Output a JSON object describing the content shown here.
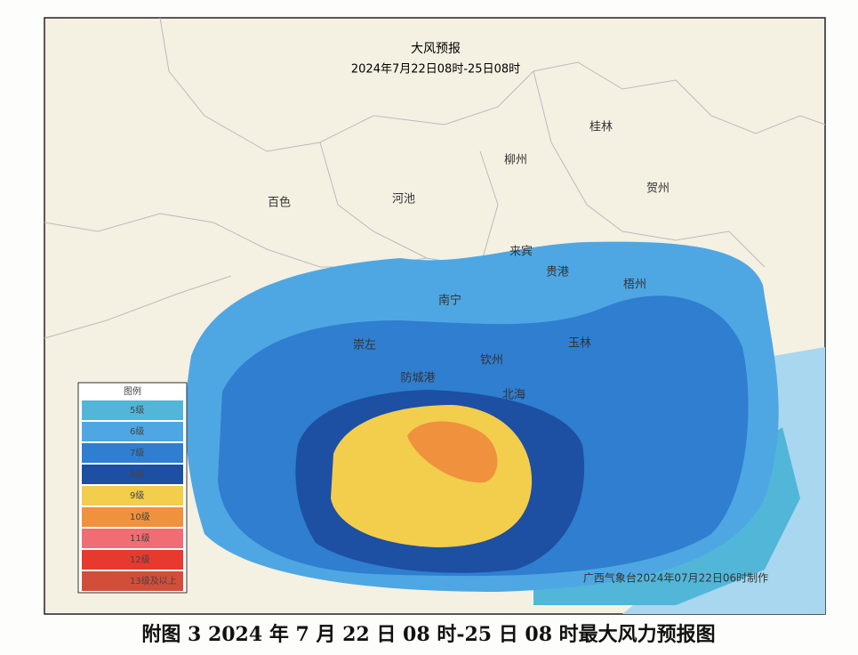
{
  "map": {
    "title": "大风预报",
    "subtitle": "2024年7月22日08时-25日08时",
    "cities": [
      "桂林",
      "柳州",
      "贺州",
      "百色",
      "河池",
      "来宾",
      "贵港",
      "梧州",
      "南宁",
      "崇左",
      "玉林",
      "钦州",
      "防城港",
      "北海"
    ],
    "legend": {
      "title": "图例",
      "items": [
        {
          "label": "5级",
          "color": "#52b6d9"
        },
        {
          "label": "6级",
          "color": "#4ea7e2"
        },
        {
          "label": "7级",
          "color": "#2f7ed0"
        },
        {
          "label": "8级",
          "color": "#1d4fa3"
        },
        {
          "label": "9级",
          "color": "#f3cd4c"
        },
        {
          "label": "10级",
          "color": "#ef913d"
        },
        {
          "label": "11级",
          "color": "#f06d74"
        },
        {
          "label": "12级",
          "color": "#e8392e"
        },
        {
          "label": "13级及以上",
          "color": "#d34d3b"
        }
      ]
    },
    "credit": "广西气象台2024年07月22日06时制作"
  },
  "caption": "附图 3  2024 年 7 月 22 日 08 时-25 日 08 时最大风力预报图"
}
